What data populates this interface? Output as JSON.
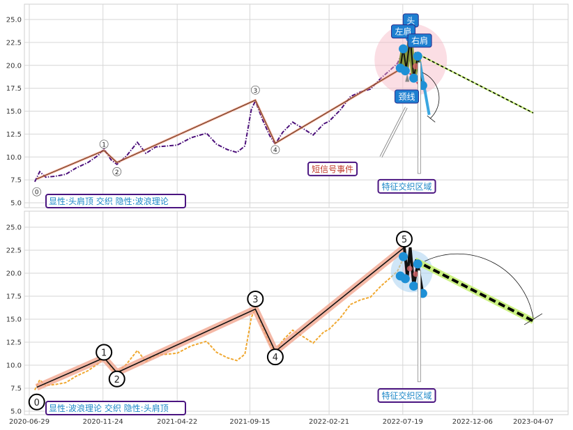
{
  "chart_data": [
    {
      "type": "line",
      "panel": "top",
      "ylim": [
        4.5,
        26.5
      ],
      "yticks": [
        "5.0",
        "7.5",
        "10.0",
        "12.5",
        "15.0",
        "17.5",
        "20.0",
        "22.5",
        "25.0"
      ],
      "ytick_values": [
        5.0,
        7.5,
        10.0,
        12.5,
        15.0,
        17.5,
        20.0,
        22.5,
        25.0
      ],
      "grid": true,
      "price_color": "#4b0f7a",
      "price_style": "dash-dot",
      "price_series": [
        [
          "2020-07-10",
          7.3
        ],
        [
          "2020-07-20",
          8.4
        ],
        [
          "2020-08-01",
          7.8
        ],
        [
          "2020-08-20",
          7.9
        ],
        [
          "2020-09-10",
          8.1
        ],
        [
          "2020-10-01",
          8.8
        ],
        [
          "2020-10-25",
          9.4
        ],
        [
          "2020-11-15",
          10.2
        ],
        [
          "2020-11-26",
          10.9
        ],
        [
          "2020-12-10",
          9.7
        ],
        [
          "2020-12-22",
          9.2
        ],
        [
          "2021-01-10",
          10.1
        ],
        [
          "2021-02-01",
          11.6
        ],
        [
          "2021-02-18",
          10.4
        ],
        [
          "2021-03-10",
          11.1
        ],
        [
          "2021-04-01",
          11.2
        ],
        [
          "2021-04-22",
          11.3
        ],
        [
          "2021-05-20",
          12.1
        ],
        [
          "2021-06-20",
          12.6
        ],
        [
          "2021-07-10",
          11.4
        ],
        [
          "2021-08-01",
          10.8
        ],
        [
          "2021-08-20",
          10.5
        ],
        [
          "2021-09-05",
          11.2
        ],
        [
          "2021-09-18",
          15.2
        ],
        [
          "2021-09-26",
          16.1
        ],
        [
          "2021-10-10",
          14.1
        ],
        [
          "2021-10-25",
          12.3
        ],
        [
          "2021-11-05",
          11.4
        ],
        [
          "2021-11-20",
          12.7
        ],
        [
          "2021-12-10",
          13.8
        ],
        [
          "2021-12-28",
          13.2
        ],
        [
          "2022-01-20",
          12.4
        ],
        [
          "2022-02-10",
          13.6
        ],
        [
          "2022-02-21",
          13.9
        ],
        [
          "2022-03-15",
          15.1
        ],
        [
          "2022-04-05",
          16.6
        ],
        [
          "2022-04-25",
          17.1
        ],
        [
          "2022-05-15",
          17.4
        ],
        [
          "2022-06-05",
          18.6
        ],
        [
          "2022-06-22",
          19.4
        ],
        [
          "2022-07-08",
          20.2
        ],
        [
          "2022-07-20",
          21.6
        ]
      ],
      "trend_line": [
        [
          "2020-07-14",
          7.6
        ],
        [
          "2020-11-26",
          10.7
        ],
        [
          "2020-12-22",
          9.4
        ],
        [
          "2021-09-26",
          16.2
        ],
        [
          "2021-11-05",
          11.5
        ],
        [
          "2022-07-18",
          19.7
        ]
      ],
      "head_shoulders_line": [
        [
          "2022-07-14",
          19.7
        ],
        [
          "2022-07-20",
          21.8
        ],
        [
          "2022-07-26",
          19.6
        ],
        [
          "2022-08-03",
          23.0
        ],
        [
          "2022-08-10",
          18.6
        ],
        [
          "2022-08-18",
          21.0
        ],
        [
          "2022-08-28",
          17.8
        ]
      ],
      "head_shoulders_points": [
        [
          "2022-07-14",
          19.7
        ],
        [
          "2022-07-20",
          21.8
        ],
        [
          "2022-07-24",
          19.4
        ],
        [
          "2022-08-03",
          23.0
        ],
        [
          "2022-08-10",
          18.6
        ],
        [
          "2022-08-18",
          21.0
        ],
        [
          "2022-08-28",
          17.8
        ]
      ],
      "projection_line": [
        [
          "2022-08-12",
          21.4
        ],
        [
          "2023-04-07",
          14.8
        ]
      ],
      "neckline_dashed": [
        [
          "2022-07-26",
          19.6
        ],
        [
          "2022-08-30",
          17.2
        ]
      ],
      "waves": [
        {
          "label": "0",
          "x": "2020-07-14",
          "y": 6.2
        },
        {
          "label": "1",
          "x": "2020-11-26",
          "y": 11.4
        },
        {
          "label": "2",
          "x": "2020-12-22",
          "y": 8.4
        },
        {
          "label": "3",
          "x": "2021-09-26",
          "y": 17.3
        },
        {
          "label": "4",
          "x": "2021-11-05",
          "y": 10.8
        }
      ],
      "annotations": [
        {
          "text": "头",
          "x": "2022-08-04",
          "y": 24.9,
          "style": "blue"
        },
        {
          "text": "左肩",
          "x": "2022-07-20",
          "y": 23.7,
          "style": "blue"
        },
        {
          "text": "右肩",
          "x": "2022-08-22",
          "y": 22.7,
          "style": "blue"
        },
        {
          "text": "颈线",
          "x": "2022-07-27",
          "y": 16.6,
          "style": "blue"
        },
        {
          "text": "短信号事件",
          "x": "2022-02-28",
          "y": 8.7,
          "style": "outline-red"
        },
        {
          "text": "特征交织区域",
          "x": "2022-07-27",
          "y": 6.8,
          "style": "outline-blue"
        }
      ],
      "legend_text": "显性:头肩顶 交织 隐性:波浪理论"
    },
    {
      "type": "line",
      "panel": "bottom",
      "ylim": [
        4.5,
        26.5
      ],
      "yticks": [
        "5.0",
        "7.5",
        "10.0",
        "12.5",
        "15.0",
        "17.5",
        "20.0",
        "22.5",
        "25.0"
      ],
      "ytick_values": [
        5.0,
        7.5,
        10.0,
        12.5,
        15.0,
        17.5,
        20.0,
        22.5,
        25.0
      ],
      "xticks": [
        "2020-06-29",
        "2020-11-24",
        "2021-04-22",
        "2021-09-15",
        "2022-02-21",
        "2022-07-19",
        "2022-12-06",
        "2023-04-07"
      ],
      "grid": true,
      "price_color": "#f0a830",
      "price_style": "dashed",
      "price_series": [
        [
          "2020-07-10",
          7.3
        ],
        [
          "2020-07-20",
          8.4
        ],
        [
          "2020-08-01",
          7.8
        ],
        [
          "2020-08-20",
          7.9
        ],
        [
          "2020-09-10",
          8.1
        ],
        [
          "2020-10-01",
          8.8
        ],
        [
          "2020-10-25",
          9.4
        ],
        [
          "2020-11-15",
          10.2
        ],
        [
          "2020-11-26",
          10.9
        ],
        [
          "2020-12-10",
          9.7
        ],
        [
          "2020-12-22",
          9.2
        ],
        [
          "2021-01-10",
          10.1
        ],
        [
          "2021-02-01",
          11.6
        ],
        [
          "2021-02-18",
          10.4
        ],
        [
          "2021-03-10",
          11.1
        ],
        [
          "2021-04-01",
          11.2
        ],
        [
          "2021-04-22",
          11.3
        ],
        [
          "2021-05-20",
          12.1
        ],
        [
          "2021-06-20",
          12.6
        ],
        [
          "2021-07-10",
          11.4
        ],
        [
          "2021-08-01",
          10.8
        ],
        [
          "2021-08-20",
          10.5
        ],
        [
          "2021-09-05",
          11.2
        ],
        [
          "2021-09-18",
          15.2
        ],
        [
          "2021-09-26",
          16.1
        ],
        [
          "2021-10-10",
          14.1
        ],
        [
          "2021-10-25",
          12.3
        ],
        [
          "2021-11-05",
          11.4
        ],
        [
          "2021-11-20",
          12.7
        ],
        [
          "2021-12-10",
          13.8
        ],
        [
          "2021-12-28",
          13.2
        ],
        [
          "2022-01-20",
          12.4
        ],
        [
          "2022-02-10",
          13.6
        ],
        [
          "2022-02-21",
          13.9
        ],
        [
          "2022-03-15",
          15.1
        ],
        [
          "2022-04-05",
          16.6
        ],
        [
          "2022-04-25",
          17.1
        ],
        [
          "2022-05-15",
          17.4
        ],
        [
          "2022-06-05",
          18.6
        ],
        [
          "2022-06-22",
          19.4
        ],
        [
          "2022-07-08",
          20.2
        ],
        [
          "2022-07-20",
          21.6
        ]
      ],
      "wave_line": [
        [
          "2020-07-14",
          7.6
        ],
        [
          "2020-11-26",
          10.8
        ],
        [
          "2020-12-22",
          9.2
        ],
        [
          "2021-09-26",
          16.1
        ],
        [
          "2021-11-05",
          11.5
        ],
        [
          "2022-07-22",
          22.8
        ]
      ],
      "head_shoulders_line": [
        [
          "2022-07-22",
          22.8
        ],
        [
          "2022-07-28",
          19.6
        ],
        [
          "2022-08-03",
          22.8
        ],
        [
          "2022-08-10",
          18.6
        ],
        [
          "2022-08-18",
          21.0
        ],
        [
          "2022-08-28",
          17.8
        ]
      ],
      "head_shoulders_points": [
        [
          "2022-07-14",
          19.7
        ],
        [
          "2022-07-20",
          21.8
        ],
        [
          "2022-07-24",
          19.4
        ],
        [
          "2022-08-10",
          18.6
        ],
        [
          "2022-08-18",
          21.0
        ],
        [
          "2022-08-28",
          17.8
        ]
      ],
      "projection_line": [
        [
          "2022-08-12",
          21.4
        ],
        [
          "2023-04-07",
          14.8
        ]
      ],
      "waves": [
        {
          "label": "0",
          "x": "2020-07-14",
          "y": 6.0
        },
        {
          "label": "1",
          "x": "2020-11-26",
          "y": 11.4
        },
        {
          "label": "2",
          "x": "2020-12-22",
          "y": 8.5
        },
        {
          "label": "3",
          "x": "2021-09-26",
          "y": 17.2
        },
        {
          "label": "4",
          "x": "2021-11-05",
          "y": 10.9
        },
        {
          "label": "5",
          "x": "2022-07-22",
          "y": 23.7
        }
      ],
      "annotations": [
        {
          "text": "特征交织区域",
          "x": "2022-07-27",
          "y": 6.7,
          "style": "outline-blue"
        }
      ],
      "legend_text": "显性:波浪理论 交织 隐性:头肩顶"
    }
  ]
}
